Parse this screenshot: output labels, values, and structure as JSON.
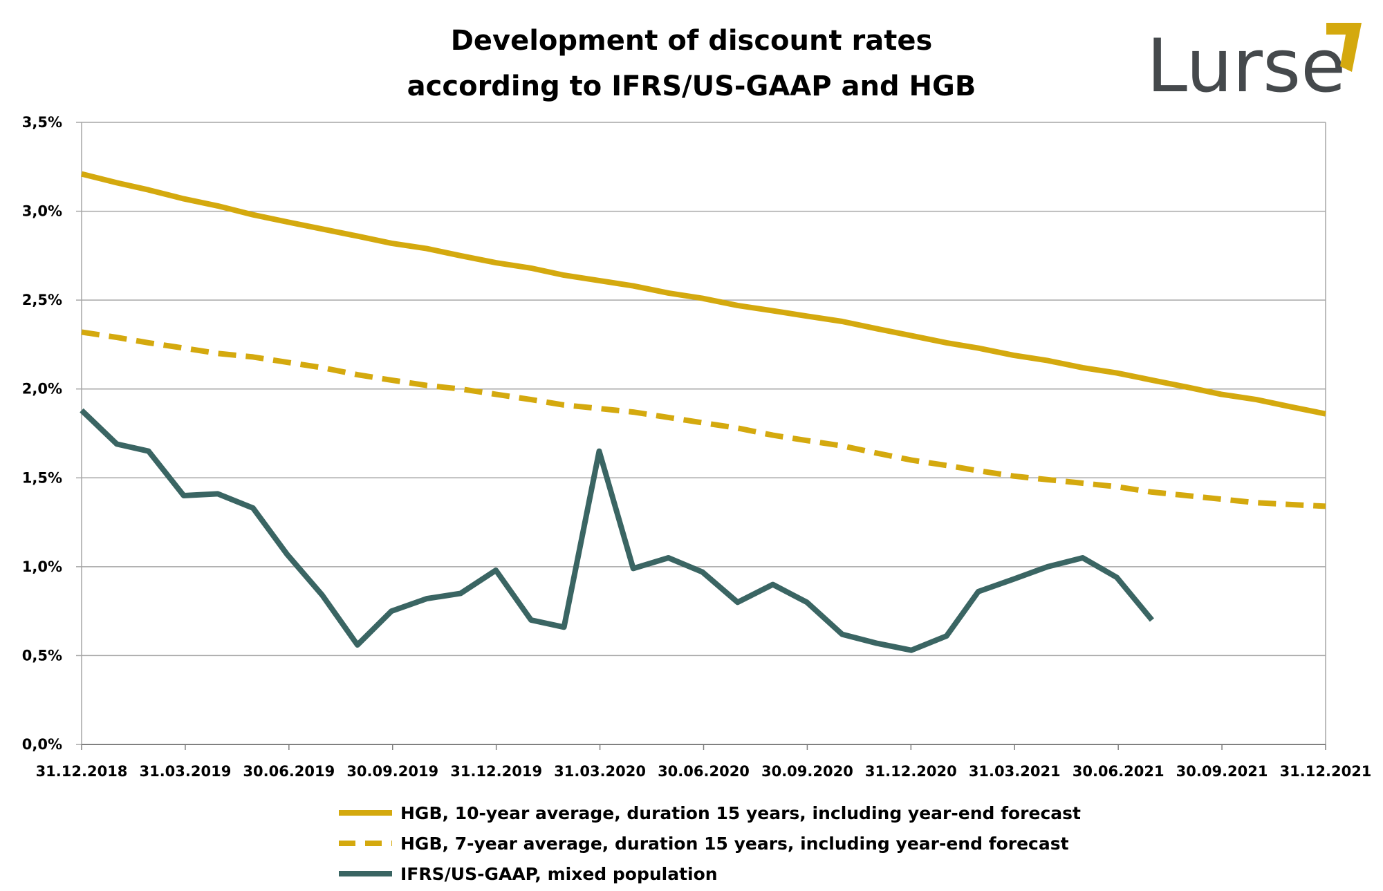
{
  "chart_data": {
    "type": "line",
    "title": "Development of discount rates according to IFRS/US-GAAP and HGB",
    "title_lines": [
      "Development of discount rates",
      "according to IFRS/US-GAAP and HGB"
    ],
    "xlabel": "",
    "ylabel": "",
    "ylim": [
      0,
      3.5
    ],
    "y_ticks": [
      0,
      0.5,
      1.0,
      1.5,
      2.0,
      2.5,
      3.0,
      3.5
    ],
    "y_tick_labels": [
      "0,0%",
      "0,5%",
      "1,0%",
      "1,5%",
      "2,0%",
      "2,5%",
      "3,0%",
      "3,5%"
    ],
    "x_range": [
      "2018-12-31",
      "2021-12-31"
    ],
    "x_tick_labels": [
      "31.12.2018",
      "31.03.2019",
      "30.06.2019",
      "30.09.2019",
      "31.12.2019",
      "31.03.2020",
      "30.06.2020",
      "30.09.2020",
      "31.12.2020",
      "31.03.2021",
      "30.06.2021",
      "30.09.2021",
      "31.12.2021"
    ],
    "grid": true,
    "legend_position": "bottom",
    "series": [
      {
        "name": "HGB, 10-year average, duration 15 years, including year-end forecast",
        "color": "#d4a90e",
        "style": "solid",
        "x": [
          "2018-12-31",
          "2019-01-31",
          "2019-02-28",
          "2019-03-31",
          "2019-04-30",
          "2019-05-31",
          "2019-06-30",
          "2019-07-31",
          "2019-08-31",
          "2019-09-30",
          "2019-10-31",
          "2019-11-30",
          "2019-12-31",
          "2020-01-31",
          "2020-02-29",
          "2020-03-31",
          "2020-04-30",
          "2020-05-31",
          "2020-06-30",
          "2020-07-31",
          "2020-08-31",
          "2020-09-30",
          "2020-10-31",
          "2020-11-30",
          "2020-12-31",
          "2021-01-31",
          "2021-02-28",
          "2021-03-31",
          "2021-04-30",
          "2021-05-31",
          "2021-06-30",
          "2021-07-31",
          "2021-08-31",
          "2021-09-30",
          "2021-10-31",
          "2021-11-30",
          "2021-12-31"
        ],
        "values": [
          3.21,
          3.16,
          3.12,
          3.07,
          3.03,
          2.98,
          2.94,
          2.9,
          2.86,
          2.82,
          2.79,
          2.75,
          2.71,
          2.68,
          2.64,
          2.61,
          2.58,
          2.54,
          2.51,
          2.47,
          2.44,
          2.41,
          2.38,
          2.34,
          2.3,
          2.26,
          2.23,
          2.19,
          2.16,
          2.12,
          2.09,
          2.05,
          2.01,
          1.97,
          1.94,
          1.9,
          1.86
        ]
      },
      {
        "name": "HGB, 7-year average, duration 15 years, including year-end forecast",
        "color": "#d4a90e",
        "style": "dashed",
        "x": [
          "2018-12-31",
          "2019-01-31",
          "2019-02-28",
          "2019-03-31",
          "2019-04-30",
          "2019-05-31",
          "2019-06-30",
          "2019-07-31",
          "2019-08-31",
          "2019-09-30",
          "2019-10-31",
          "2019-11-30",
          "2019-12-31",
          "2020-01-31",
          "2020-02-29",
          "2020-03-31",
          "2020-04-30",
          "2020-05-31",
          "2020-06-30",
          "2020-07-31",
          "2020-08-31",
          "2020-09-30",
          "2020-10-31",
          "2020-11-30",
          "2020-12-31",
          "2021-01-31",
          "2021-02-28",
          "2021-03-31",
          "2021-04-30",
          "2021-05-31",
          "2021-06-30",
          "2021-07-31",
          "2021-08-31",
          "2021-09-30",
          "2021-10-31",
          "2021-11-30",
          "2021-12-31"
        ],
        "values": [
          2.32,
          2.29,
          2.26,
          2.23,
          2.2,
          2.18,
          2.15,
          2.12,
          2.08,
          2.05,
          2.02,
          2.0,
          1.97,
          1.94,
          1.91,
          1.89,
          1.87,
          1.84,
          1.81,
          1.78,
          1.74,
          1.71,
          1.68,
          1.64,
          1.6,
          1.57,
          1.54,
          1.51,
          1.49,
          1.47,
          1.45,
          1.42,
          1.4,
          1.38,
          1.36,
          1.35,
          1.34
        ]
      },
      {
        "name": "IFRS/US-GAAP, mixed population",
        "color": "#3a6563",
        "style": "solid",
        "x": [
          "2018-12-31",
          "2019-01-31",
          "2019-02-28",
          "2019-03-31",
          "2019-04-30",
          "2019-05-31",
          "2019-06-30",
          "2019-07-31",
          "2019-08-31",
          "2019-09-30",
          "2019-10-31",
          "2019-11-30",
          "2019-12-31",
          "2020-01-31",
          "2020-02-29",
          "2020-03-31",
          "2020-04-30",
          "2020-05-31",
          "2020-06-30",
          "2020-07-31",
          "2020-08-31",
          "2020-09-30",
          "2020-10-31",
          "2020-11-30",
          "2020-12-31",
          "2021-01-31",
          "2021-02-28",
          "2021-03-31",
          "2021-04-30",
          "2021-05-31",
          "2021-06-30",
          "2021-07-31"
        ],
        "values": [
          1.88,
          1.69,
          1.65,
          1.4,
          1.41,
          1.33,
          1.07,
          0.84,
          0.56,
          0.75,
          0.82,
          0.85,
          0.98,
          0.7,
          0.66,
          1.65,
          0.99,
          1.05,
          0.97,
          0.8,
          0.9,
          0.8,
          0.62,
          0.57,
          0.53,
          0.61,
          0.86,
          0.93,
          1.0,
          1.05,
          0.94,
          0.7
        ]
      }
    ]
  },
  "logo": {
    "text": "Lurse",
    "text_color": "#45494c",
    "accent_color": "#d4a90e"
  }
}
